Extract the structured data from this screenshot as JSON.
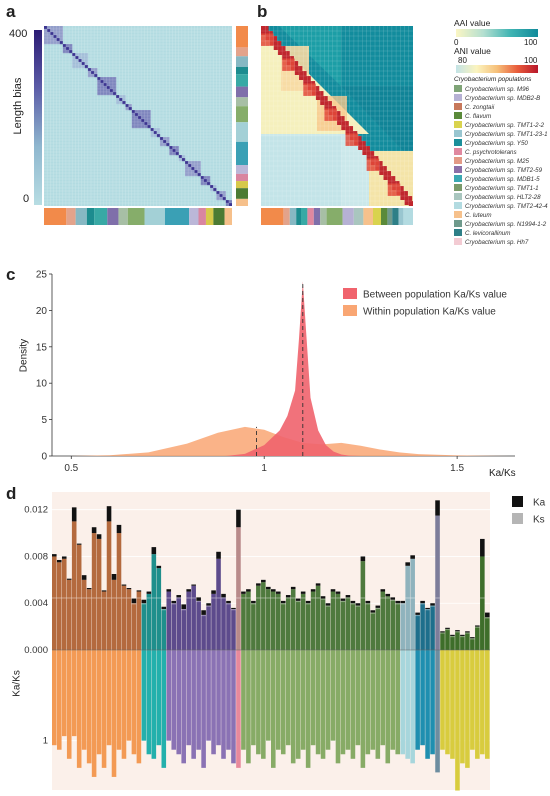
{
  "panels": {
    "a": "a",
    "b": "b",
    "c": "c",
    "d": "d"
  },
  "colors": {
    "teal_dark": "#128c9d",
    "teal_light": "#a6d7dd",
    "red": "#c0272d",
    "yellow": "#fbf3b8",
    "between_fill": "#f0636d",
    "within_fill": "#f9a673",
    "ka_bar": "#111111",
    "ks_bar": "#b5b5b5",
    "bg_d": "#fbf0ea"
  },
  "population_colors": [
    "#f28a4a",
    "#e3a38b",
    "#86b8c3",
    "#1c8c8f",
    "#38a9a5",
    "#7f6faa",
    "#a7bfa5",
    "#86ad6a",
    "#a3d0d6",
    "#3aa0b5",
    "#bbb7d8",
    "#d985a0",
    "#d7c94a",
    "#4c7b33",
    "#f6c08b"
  ],
  "chart_data": [
    {
      "panel": "a",
      "type": "heatmap",
      "ylabel": "Length bias",
      "colorbar_ticks": [
        "400",
        "0"
      ],
      "colorbar_range": [
        0,
        450
      ]
    },
    {
      "panel": "b",
      "type": "heatmap",
      "aai_label": "AAI value",
      "aai_ticks": [
        "0",
        "100"
      ],
      "ani_label": "ANI value",
      "ani_ticks": [
        "80",
        "100"
      ],
      "legend_title": "Cryobacterium populations",
      "legend": [
        {
          "name": "Cryobacterium sp. M96",
          "color": "#7fa477"
        },
        {
          "name": "Cryobacterium sp. MDB2-B",
          "color": "#b6b1d4"
        },
        {
          "name": "C. zongtaii",
          "color": "#c7785b"
        },
        {
          "name": "C. flavum",
          "color": "#5a8a3a"
        },
        {
          "name": "Cryobacterium sp. TMT1-2-2",
          "color": "#d9d34e"
        },
        {
          "name": "Cryobacterium sp. TMT1-23-1",
          "color": "#99c6d0"
        },
        {
          "name": "Cryobacterium sp. Y50",
          "color": "#1b8f9a"
        },
        {
          "name": "C. psychrotolerans",
          "color": "#e0889f"
        },
        {
          "name": "Cryobacterium sp. M25",
          "color": "#e39a86"
        },
        {
          "name": "Cryobacterium sp. TMT2-59",
          "color": "#8b6fa8"
        },
        {
          "name": "Cryobacterium sp. MDB1-5",
          "color": "#3aa8b2"
        },
        {
          "name": "Cryobacterium sp. TMT1-1",
          "color": "#7a9a6a"
        },
        {
          "name": "Cryobacterium sp. HLT2-28",
          "color": "#a9c6bf"
        },
        {
          "name": "Cryobacterium sp. TMT2-42-4",
          "color": "#b3dbe1"
        },
        {
          "name": "C. luteum",
          "color": "#f6c18c"
        },
        {
          "name": "Cryobacterium sp. N1994-1-2",
          "color": "#6f9a8c"
        },
        {
          "name": "C. levicorallinum",
          "color": "#2e7f87"
        },
        {
          "name": "Cryobacterium sp. Hh7",
          "color": "#f3cbd3"
        }
      ]
    },
    {
      "panel": "c",
      "type": "area",
      "xlabel": "Ka/Ks",
      "ylabel": "Density",
      "xlim": [
        0.45,
        1.65
      ],
      "ylim": [
        0,
        25
      ],
      "x_ticks": [
        "0.5",
        "1",
        "1.5"
      ],
      "y_ticks": [
        "0",
        "5",
        "10",
        "15",
        "20",
        "25"
      ],
      "series": [
        {
          "name": "Between population Ka/Ks value",
          "color": "#f0636d",
          "mean": 1.1,
          "x": [
            0.9,
            0.95,
            1.0,
            1.02,
            1.04,
            1.06,
            1.08,
            1.09,
            1.1,
            1.11,
            1.12,
            1.14,
            1.16,
            1.18,
            1.2,
            1.22,
            1.25
          ],
          "y": [
            0,
            0.3,
            1.5,
            2.5,
            3.5,
            5.5,
            9,
            16,
            24,
            16,
            8,
            3.5,
            1.5,
            0.6,
            0.2,
            0.05,
            0
          ]
        },
        {
          "name": "Within population Ka/Ks value",
          "color": "#f9a673",
          "mean": 0.98,
          "x": [
            0.5,
            0.6,
            0.7,
            0.8,
            0.88,
            0.95,
            1.0,
            1.05,
            1.1,
            1.15,
            1.2,
            1.25,
            1.3,
            1.35,
            1.4,
            1.5,
            1.6,
            1.65
          ],
          "y": [
            0,
            0.1,
            0.5,
            1.7,
            3.2,
            4.0,
            3.6,
            2.6,
            1.8,
            1.6,
            1.8,
            1.4,
            0.9,
            0.5,
            0.25,
            0.08,
            0.02,
            0
          ]
        }
      ]
    },
    {
      "panel": "d",
      "type": "bar",
      "ylabel": "Ka/Ks",
      "y_ticks_top": [
        "0.012",
        "0.008",
        "0.004",
        "0.000"
      ],
      "ylim_top": [
        0,
        0.013
      ],
      "y_ticks_bottom": [
        "1"
      ],
      "ylim_bottom": [
        0,
        1.5
      ],
      "series": [
        {
          "name": "Ka",
          "color": "#111111"
        },
        {
          "name": "Ks",
          "color": "#b5b5b5"
        }
      ],
      "groups": [
        {
          "color": "#b46a3e",
          "ratio_color": "#f39a54",
          "ks": [
            0.008,
            0.0075,
            0.0078,
            0.006,
            0.011,
            0.009,
            0.006,
            0.0052,
            0.01,
            0.0095,
            0.005,
            0.011,
            0.006,
            0.01,
            0.0055,
            0.0052,
            0.004,
            0.005
          ],
          "ka": [
            0.0002,
            0.0002,
            0.0002,
            0.0001,
            0.0012,
            0.0001,
            0.0004,
            0.0001,
            0.0005,
            0.0004,
            0.0001,
            0.0013,
            0.0005,
            0.0007,
            0.0001,
            0.0001,
            0.0004,
            0.0001
          ],
          "ratio": [
            1.05,
            1.1,
            0.95,
            1.2,
            0.95,
            1.3,
            1.1,
            1.25,
            1.4,
            1.15,
            1.3,
            1.05,
            1.4,
            1.1,
            1.2,
            1.0,
            1.15,
            1.25
          ]
        },
        {
          "color": "#1f8f8c",
          "ratio_color": "#23b0ac",
          "ks": [
            0.004,
            0.0048,
            0.0082,
            0.007,
            0.0035
          ],
          "ka": [
            0.0003,
            0.0002,
            0.0006,
            0.0002,
            0.0002
          ],
          "ratio": [
            1.0,
            1.15,
            1.2,
            1.05,
            1.3
          ]
        },
        {
          "color": "#5d4b8c",
          "ratio_color": "#8a72b4",
          "ks": [
            0.005,
            0.004,
            0.0045,
            0.0035,
            0.005,
            0.0055,
            0.0042,
            0.003,
            0.0038,
            0.0048,
            0.0078,
            0.0045,
            0.004,
            0.0035
          ],
          "ka": [
            0.0002,
            0.0002,
            0.0002,
            0.0004,
            0.0002,
            0.0001,
            0.0003,
            0.0004,
            0.0002,
            0.0003,
            0.0006,
            0.0003,
            0.0002,
            0.0001
          ],
          "ratio": [
            1.0,
            1.1,
            1.15,
            1.25,
            1.05,
            1.2,
            1.1,
            1.3,
            1.0,
            1.15,
            1.05,
            1.2,
            1.1,
            1.25
          ]
        },
        {
          "color": "#b88a8a",
          "ratio_color": "#e7899c",
          "ks": [
            0.0105
          ],
          "ka": [
            0.0015
          ],
          "ratio": [
            1.3
          ]
        },
        {
          "color": "#4f7a3e",
          "ratio_color": "#87ab66",
          "ks": [
            0.0048,
            0.005,
            0.004,
            0.0055,
            0.0058,
            0.0052,
            0.005,
            0.0048,
            0.004,
            0.0045,
            0.0052,
            0.0042,
            0.0048,
            0.004,
            0.005,
            0.0055,
            0.0044,
            0.0038,
            0.005,
            0.0048,
            0.0042,
            0.0045,
            0.004,
            0.0038,
            0.0076,
            0.004,
            0.0032,
            0.0036,
            0.005,
            0.0046,
            0.0043,
            0.004
          ],
          "ka": [
            0.0002,
            0.0002,
            0.0002,
            0.0002,
            0.0002,
            0.0002,
            0.0002,
            0.0002,
            0.0002,
            0.0002,
            0.0002,
            0.0002,
            0.0002,
            0.0002,
            0.0002,
            0.0002,
            0.0002,
            0.0002,
            0.0002,
            0.0002,
            0.0002,
            0.0002,
            0.0002,
            0.0002,
            0.0004,
            0.0002,
            0.0002,
            0.0002,
            0.0002,
            0.0002,
            0.0002,
            0.0002
          ],
          "ratio": [
            1.1,
            1.25,
            1.05,
            1.15,
            1.2,
            1.0,
            1.3,
            1.1,
            1.15,
            1.05,
            1.25,
            1.2,
            1.1,
            1.3,
            1.05,
            1.15,
            1.2,
            1.1,
            1.0,
            1.25,
            1.15,
            1.1,
            1.2,
            1.05,
            1.3,
            1.15,
            1.1,
            1.2,
            1.05,
            1.25,
            1.1,
            1.15
          ]
        },
        {
          "color": "#8fb3bd",
          "ratio_color": "#a7d6dc",
          "ks": [
            0.004,
            0.0072,
            0.0078
          ],
          "ka": [
            0.0002,
            0.0003,
            0.0003
          ],
          "ratio": [
            1.15,
            1.2,
            1.25
          ]
        },
        {
          "color": "#1e6f8c",
          "ratio_color": "#1f8fb0",
          "ks": [
            0.003,
            0.004,
            0.0035,
            0.0038
          ],
          "ka": [
            0.0002,
            0.0002,
            0.0001,
            0.0002
          ],
          "ratio": [
            1.1,
            1.05,
            1.2,
            1.15
          ]
        },
        {
          "color": "#7d7d9a",
          "ratio_color": "#6d8da0",
          "ks": [
            0.0115
          ],
          "ka": [
            0.0013
          ],
          "ratio": [
            1.35
          ]
        },
        {
          "color": "#3e6e2a",
          "ratio_color": "#d8cc3e",
          "ks": [
            0.0015,
            0.0018,
            0.0012,
            0.0016,
            0.0012,
            0.0015,
            0.001,
            0.002,
            0.008,
            0.0028
          ],
          "ka": [
            0.0001,
            0.0001,
            0.0001,
            0.0001,
            0.0001,
            0.0001,
            0.0001,
            0.0001,
            0.0015,
            0.0004
          ],
          "ratio": [
            1.1,
            1.15,
            1.2,
            1.55,
            1.25,
            1.3,
            1.1,
            1.2,
            1.15,
            1.2
          ]
        }
      ]
    }
  ]
}
